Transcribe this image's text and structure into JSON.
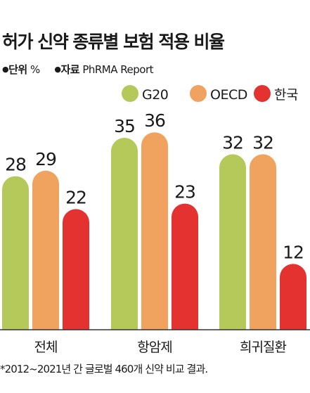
{
  "title": "허가 신약 종류별 보험 적용 비율",
  "unit_label": "단위",
  "unit_value": "%",
  "source_label": "자료",
  "source_value": "PhRMA Report",
  "footnote": "*2012~2021년 간 글로벌 460개 신약 비교 결과.",
  "chart_data": {
    "type": "bar",
    "categories": [
      "전체",
      "항암제",
      "희귀질환"
    ],
    "series": [
      {
        "name": "G20",
        "values": [
          28,
          35,
          32
        ],
        "color": "#b5c95a"
      },
      {
        "name": "OECD",
        "values": [
          29,
          36,
          32
        ],
        "color": "#f0a35e"
      },
      {
        "name": "한국",
        "values": [
          22,
          23,
          12
        ],
        "color": "#e3322f"
      }
    ],
    "legend_position": "top-right",
    "grid": false,
    "axes_visible": false
  }
}
